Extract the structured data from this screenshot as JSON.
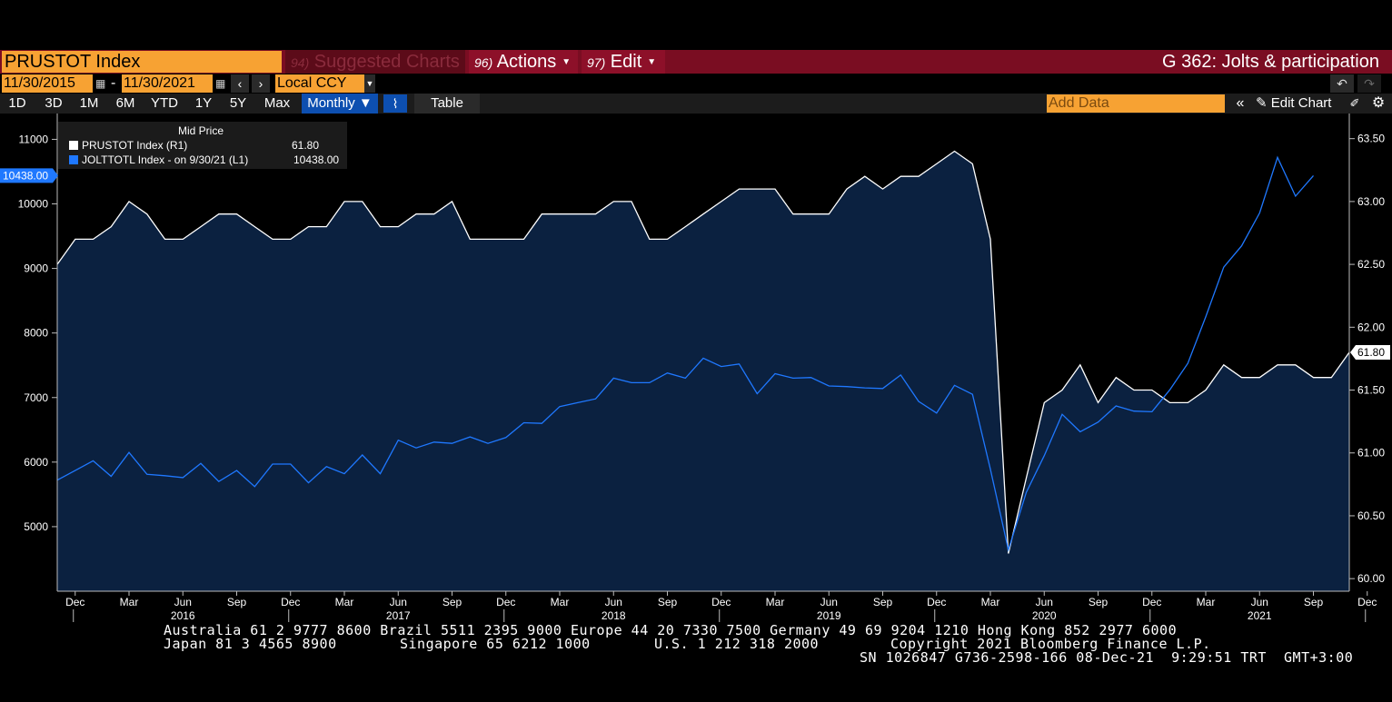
{
  "header": {
    "ticker": "PRUSTOT Index",
    "menu": [
      {
        "num": "94)",
        "label": "Suggested Charts"
      },
      {
        "num": "96)",
        "label": "Actions"
      },
      {
        "num": "97)",
        "label": "Edit"
      }
    ],
    "title": "G 362: Jolts & participation"
  },
  "toolbar": {
    "start_date": "11/30/2015",
    "end_date": "11/30/2021",
    "separator": "-",
    "currency": "Local CCY",
    "ranges": [
      "1D",
      "3D",
      "1M",
      "6M",
      "YTD",
      "1Y",
      "5Y",
      "Max"
    ],
    "frequency": "Monthly",
    "table_label": "Table",
    "add_data_placeholder": "Add Data",
    "edit_chart_label": "Edit Chart"
  },
  "legend": {
    "header": "Mid Price",
    "items": [
      {
        "label": "PRUSTOT Index  (R1)",
        "value": "61.80",
        "color": "#ffffff"
      },
      {
        "label": "JOLTTOTL Index -  on 9/30/21  (L1)",
        "value": "10438.00",
        "color": "#1f78ff"
      }
    ]
  },
  "chart_data": {
    "type": "line",
    "x_start": "2015-11",
    "x_end": "2021-11",
    "x_tick_labels": [
      "Dec",
      "Mar",
      "Jun",
      "Sep",
      "Dec",
      "Mar",
      "Jun",
      "Sep",
      "Dec",
      "Mar",
      "Jun",
      "Sep",
      "Dec",
      "Mar",
      "Jun",
      "Sep",
      "Dec",
      "Mar",
      "Jun",
      "Sep",
      "Dec",
      "Mar",
      "Jun",
      "Sep",
      "Dec"
    ],
    "year_labels": [
      "2016",
      "2017",
      "2018",
      "2019",
      "2020",
      "2021"
    ],
    "left_axis": {
      "ticks": [
        "5000",
        "6000",
        "7000",
        "8000",
        "9000",
        "10000",
        "11000"
      ],
      "min": 4000,
      "max": 11400,
      "last_value_label": "10438.00"
    },
    "right_axis": {
      "ticks": [
        "60.00",
        "60.50",
        "61.00",
        "61.50",
        "62.00",
        "62.50",
        "63.00",
        "63.50"
      ],
      "min": 59.9,
      "max": 63.7,
      "last_value_label": "61.80"
    },
    "series": [
      {
        "name": "PRUSTOT Index",
        "axis": "right",
        "color": "#ffffff",
        "fill": "#0b2140",
        "values": [
          62.5,
          62.7,
          62.7,
          62.8,
          63.0,
          62.9,
          62.7,
          62.7,
          62.8,
          62.9,
          62.9,
          62.8,
          62.7,
          62.7,
          62.8,
          62.8,
          63.0,
          63.0,
          62.8,
          62.8,
          62.9,
          62.9,
          63.0,
          62.7,
          62.7,
          62.7,
          62.7,
          62.9,
          62.9,
          62.9,
          62.9,
          63.0,
          63.0,
          62.7,
          62.7,
          62.8,
          62.9,
          63.0,
          63.1,
          63.1,
          63.1,
          62.9,
          62.9,
          62.9,
          63.1,
          63.2,
          63.1,
          63.2,
          63.2,
          63.3,
          63.4,
          63.3,
          62.7,
          60.2,
          60.8,
          61.4,
          61.5,
          61.7,
          61.4,
          61.6,
          61.5,
          61.5,
          61.4,
          61.4,
          61.5,
          61.7,
          61.6,
          61.6,
          61.7,
          61.7,
          61.6,
          61.6,
          61.8
        ]
      },
      {
        "name": "JOLTTOTL Index",
        "axis": "left",
        "color": "#1f78ff",
        "values": [
          5720,
          5870,
          6020,
          5780,
          6150,
          5810,
          5790,
          5760,
          5980,
          5700,
          5870,
          5620,
          5970,
          5970,
          5680,
          5930,
          5820,
          6110,
          5820,
          6340,
          6220,
          6310,
          6290,
          6390,
          6290,
          6380,
          6610,
          6600,
          6860,
          6920,
          6980,
          7300,
          7230,
          7230,
          7380,
          7300,
          7610,
          7480,
          7520,
          7060,
          7370,
          7300,
          7310,
          7180,
          7170,
          7150,
          7140,
          7350,
          6940,
          6760,
          7190,
          7050,
          5890,
          4640,
          5530,
          6100,
          6740,
          6470,
          6620,
          6870,
          6790,
          6780,
          7120,
          7530,
          8250,
          9020,
          9350,
          9860,
          10720,
          10120,
          10438
        ]
      }
    ]
  },
  "footer": {
    "line1": "Australia 61 2 9777 8600 Brazil 5511 2395 9000 Europe 44 20 7330 7500 Germany 49 69 9204 1210 Hong Kong 852 2977 6000",
    "line2a": "Japan 81 3 4565 8900",
    "line2b": "Singapore 65 6212 1000",
    "line2c": "U.S. 1 212 318 2000",
    "line2d": "Copyright 2021 Bloomberg Finance L.P.",
    "line3": "SN 1026847 G736-2598-166 08-Dec-21  9:29:51 TRT  GMT+3:00"
  }
}
